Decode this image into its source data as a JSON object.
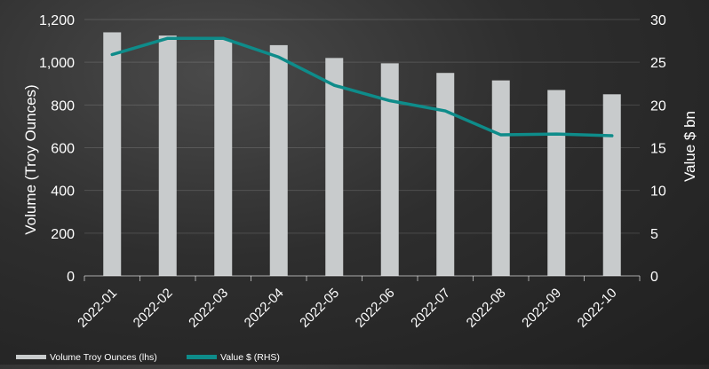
{
  "chart_data": {
    "type": "bar",
    "categories": [
      "2022-01",
      "2022-02",
      "2022-03",
      "2022-04",
      "2022-05",
      "2022-06",
      "2022-07",
      "2022-08",
      "2022-09",
      "2022-10"
    ],
    "series": [
      {
        "name": "Volume Troy Ounces (lhs)",
        "type": "bar",
        "axis": "left",
        "color": "#c8cbcc",
        "values": [
          1140,
          1125,
          1105,
          1080,
          1020,
          995,
          950,
          915,
          870,
          850
        ]
      },
      {
        "name": "Value $ (RHS)",
        "type": "line",
        "axis": "right",
        "color": "#0e8c8a",
        "values": [
          25.9,
          27.8,
          27.8,
          25.6,
          22.3,
          20.5,
          19.3,
          16.5,
          16.6,
          16.4
        ]
      }
    ],
    "ylabel": "Volume (Troy Ounces)",
    "y2label": "Value $ bn",
    "ylim": [
      0,
      1200
    ],
    "y2lim": [
      0,
      30
    ],
    "yticks": [
      "0",
      "200",
      "400",
      "600",
      "800",
      "1,000",
      "1,200"
    ],
    "y2ticks": [
      "0",
      "5",
      "10",
      "15",
      "20",
      "25",
      "30"
    ],
    "grid": true,
    "legend_position": "bottom-left"
  }
}
